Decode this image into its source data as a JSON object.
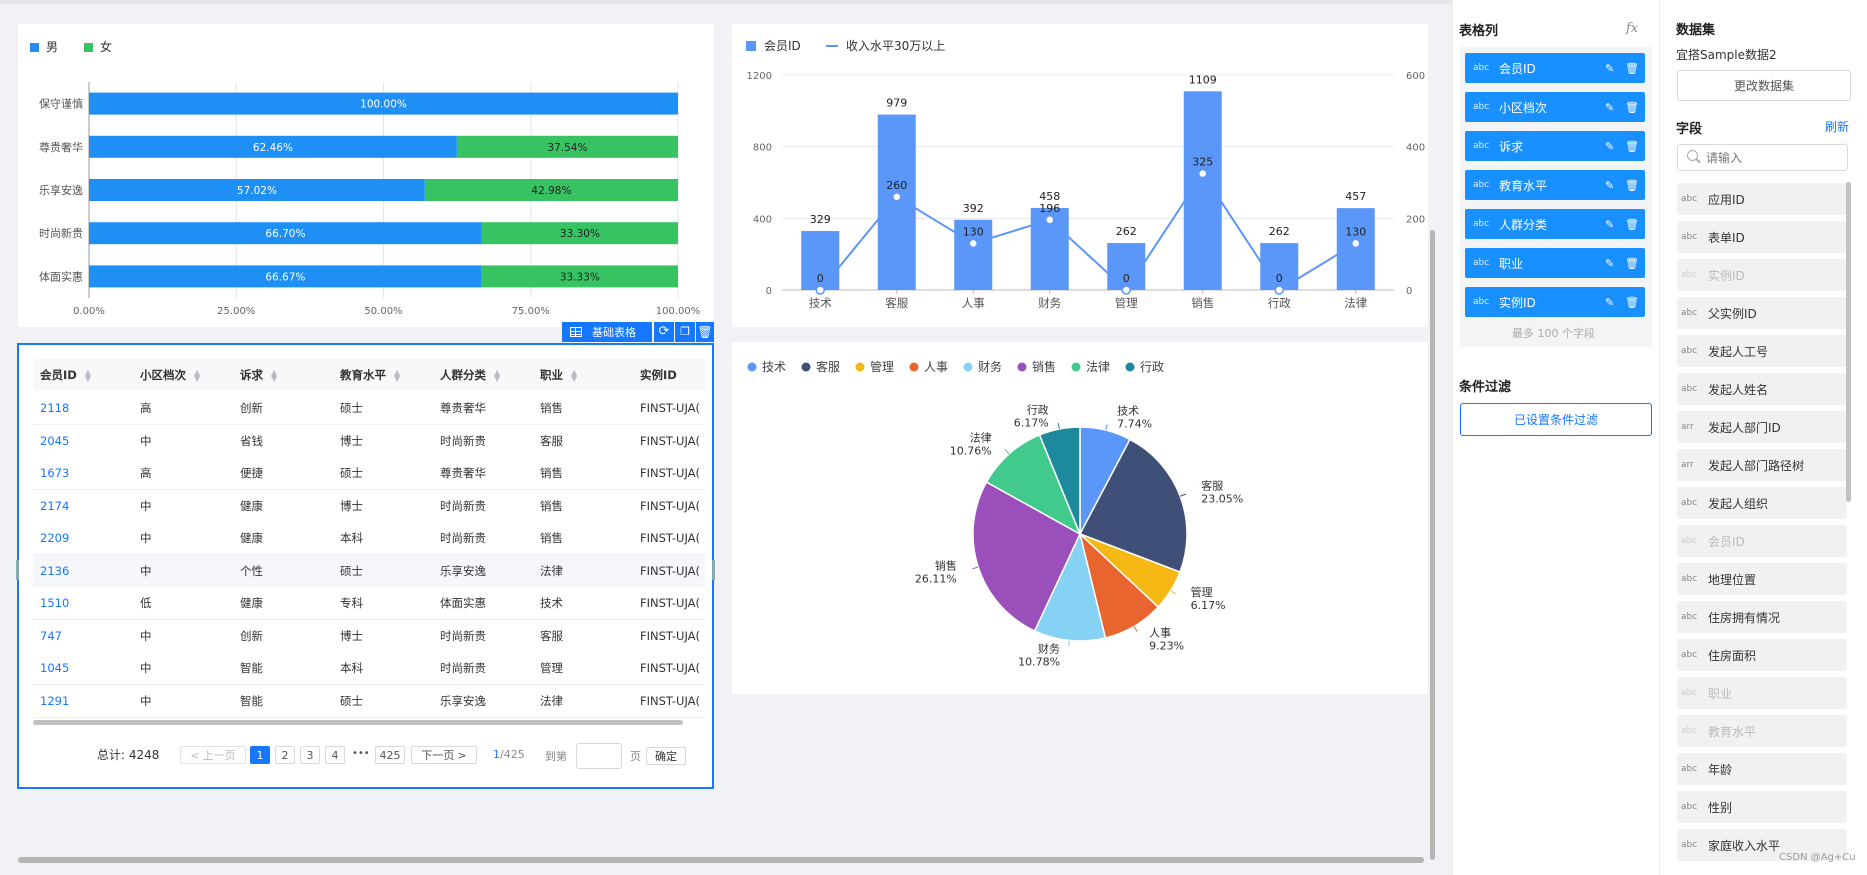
{
  "bar_chart": {
    "legend": [
      "男",
      "女"
    ],
    "colors": {
      "male": "#1e8ff5",
      "female": "#37c362"
    },
    "x_ticks": [
      "0.00%",
      "25.00%",
      "50.00%",
      "75.00%",
      "100.00%"
    ]
  },
  "combo_chart": {
    "legend_bar": "会员ID",
    "legend_line": "收入水平30万以上",
    "left_ticks": [
      "1200",
      "800",
      "400",
      "0"
    ],
    "right_ticks": [
      "600",
      "400",
      "200",
      "0"
    ],
    "bar_color": "#5b97f8"
  },
  "pie_chart": {
    "colors": [
      "#5b97f8",
      "#3f4f77",
      "#f5b814",
      "#e9652f",
      "#86d2f5",
      "#9a4fbb",
      "#42c98c",
      "#1c8a9c"
    ]
  },
  "chart_data": [
    {
      "type": "bar",
      "stacked": true,
      "orientation": "horizontal",
      "categories": [
        "保守谨慎",
        "尊贵奢华",
        "乐享安逸",
        "时尚新贵",
        "体面实惠"
      ],
      "series": [
        {
          "name": "男",
          "values": [
            100.0,
            62.46,
            57.02,
            66.7,
            66.67
          ],
          "labels": [
            "100.00%",
            "62.46%",
            "57.02%",
            "66.70%",
            "66.67%"
          ]
        },
        {
          "name": "女",
          "values": [
            0,
            37.54,
            42.98,
            33.3,
            33.33
          ],
          "labels": [
            "",
            "37.54%",
            "42.98%",
            "33.30%",
            "33.33%"
          ]
        }
      ],
      "xlim": [
        0,
        100
      ],
      "legend": "top-left"
    },
    {
      "type": "bar",
      "categories": [
        "技术",
        "客服",
        "人事",
        "财务",
        "管理",
        "销售",
        "行政",
        "法律"
      ],
      "series": [
        {
          "name": "会员ID",
          "type": "bar",
          "axis": "left",
          "values": [
            329,
            979,
            392,
            458,
            262,
            1109,
            262,
            457
          ]
        },
        {
          "name": "收入水平30万以上",
          "type": "line",
          "axis": "right",
          "values": [
            0,
            260,
            130,
            196,
            0,
            325,
            0,
            130
          ]
        }
      ],
      "ylim_left": [
        0,
        1200
      ],
      "ylim_right": [
        0,
        600
      ],
      "legend": "top-left"
    },
    {
      "type": "pie",
      "categories": [
        "技术",
        "客服",
        "管理",
        "人事",
        "财务",
        "销售",
        "法律",
        "行政"
      ],
      "values": [
        7.74,
        23.05,
        6.17,
        9.23,
        10.78,
        26.11,
        10.76,
        6.17
      ],
      "labels": [
        "7.74%",
        "23.05%",
        "6.17%",
        "9.23%",
        "10.78%",
        "26.11%",
        "10.76%",
        "6.17%"
      ],
      "legend": "top-left"
    }
  ],
  "table_toolbar": {
    "label": "基础表格"
  },
  "table": {
    "columns": [
      "会员ID",
      "小区档次",
      "诉求",
      "教育水平",
      "人群分类",
      "职业",
      "实例ID"
    ],
    "rows": [
      [
        "2118",
        "高",
        "创新",
        "硕士",
        "尊贵奢华",
        "销售",
        "FINST-UJA("
      ],
      [
        "2045",
        "中",
        "省钱",
        "博士",
        "时尚新贵",
        "客服",
        "FINST-UJA("
      ],
      [
        "1673",
        "高",
        "便捷",
        "硕士",
        "尊贵奢华",
        "销售",
        "FINST-UJA("
      ],
      [
        "2174",
        "中",
        "健康",
        "博士",
        "时尚新贵",
        "销售",
        "FINST-UJA("
      ],
      [
        "2209",
        "中",
        "健康",
        "本科",
        "时尚新贵",
        "销售",
        "FINST-UJA("
      ],
      [
        "2136",
        "中",
        "个性",
        "硕士",
        "乐享安逸",
        "法律",
        "FINST-UJA("
      ],
      [
        "1510",
        "低",
        "健康",
        "专科",
        "体面实惠",
        "技术",
        "FINST-UJA("
      ],
      [
        "747",
        "中",
        "创新",
        "博士",
        "时尚新贵",
        "客服",
        "FINST-UJA("
      ],
      [
        "1045",
        "中",
        "智能",
        "本科",
        "时尚新贵",
        "管理",
        "FINST-UJA("
      ],
      [
        "1291",
        "中",
        "智能",
        "硕士",
        "乐享安逸",
        "法律",
        "FINST-UJA("
      ]
    ]
  },
  "pager": {
    "total": "总计: 4248",
    "prev": "上一页",
    "pages": [
      "1",
      "2",
      "3",
      "4"
    ],
    "ellipsis": "•••",
    "last": "425",
    "next": "下一页",
    "current": "1",
    "of": "/425",
    "goto": "到第",
    "page_unit": "页",
    "confirm": "确定"
  },
  "config": {
    "title": "表格列",
    "fx": "fx",
    "columns": [
      {
        "type": "abc",
        "label": "会员ID"
      },
      {
        "type": "abc",
        "label": "小区档次"
      },
      {
        "type": "abc",
        "label": "诉求"
      },
      {
        "type": "abc",
        "label": "教育水平"
      },
      {
        "type": "abc",
        "label": "人群分类"
      },
      {
        "type": "abc",
        "label": "职业"
      },
      {
        "type": "abc",
        "label": "实例ID"
      }
    ],
    "max_hint": "最多 100 个字段",
    "filter_title": "条件过滤",
    "filter_button": "已设置条件过滤"
  },
  "dataset": {
    "title": "数据集",
    "name": "宜搭Sample数据2",
    "change_button": "更改数据集",
    "fields_title": "字段",
    "refresh": "刷新",
    "search_placeholder": "请输入",
    "fields": [
      {
        "type": "abc",
        "label": "应用ID",
        "dim": false
      },
      {
        "type": "abc",
        "label": "表单ID",
        "dim": false
      },
      {
        "type": "abc",
        "label": "实例ID",
        "dim": true
      },
      {
        "type": "abc",
        "label": "父实例ID",
        "dim": false
      },
      {
        "type": "abc",
        "label": "发起人工号",
        "dim": false
      },
      {
        "type": "abc",
        "label": "发起人姓名",
        "dim": false
      },
      {
        "type": "arr",
        "label": "发起人部门ID",
        "dim": false
      },
      {
        "type": "arr",
        "label": "发起人部门路径树",
        "dim": false
      },
      {
        "type": "abc",
        "label": "发起人组织",
        "dim": false
      },
      {
        "type": "abc",
        "label": "会员ID",
        "dim": true
      },
      {
        "type": "abc",
        "label": "地理位置",
        "dim": false
      },
      {
        "type": "abc",
        "label": "住房拥有情况",
        "dim": false
      },
      {
        "type": "abc",
        "label": "住房面积",
        "dim": false
      },
      {
        "type": "abc",
        "label": "职业",
        "dim": true
      },
      {
        "type": "abc",
        "label": "教育水平",
        "dim": true
      },
      {
        "type": "abc",
        "label": "年龄",
        "dim": false
      },
      {
        "type": "abc",
        "label": "性别",
        "dim": false
      },
      {
        "type": "abc",
        "label": "家庭收入水平",
        "dim": false
      }
    ]
  },
  "watermark": "CSDN @Ag+Cu"
}
